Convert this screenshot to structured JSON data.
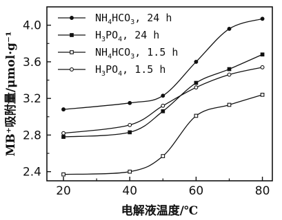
{
  "chart_data": {
    "type": "scatter",
    "xlabel": "电解液温度/℃",
    "ylabel": "MB⁺吸附量/μmol·g⁻¹",
    "xlim": [
      15,
      83
    ],
    "ylim": [
      2.3,
      4.2
    ],
    "x_ticks": [
      "20",
      "40",
      "60",
      "80"
    ],
    "y_ticks": [
      "2.4",
      "2.8",
      "3.2",
      "3.6",
      "4.0"
    ],
    "legend_position": "top-left",
    "series": [
      {
        "name_main": "NH",
        "name_sub1": "4",
        "name_mid": "HCO",
        "name_sub2": "3",
        "name_tail": ", 24 h",
        "marker": "filled-circle",
        "x": [
          20,
          40,
          50,
          60,
          70,
          80
        ],
        "y": [
          3.08,
          3.15,
          3.23,
          3.6,
          3.96,
          4.07
        ]
      },
      {
        "name_main": "H",
        "name_sub1": "3",
        "name_mid": "PO",
        "name_sub2": "4",
        "name_tail": ", 24 h",
        "marker": "filled-square",
        "x": [
          20,
          40,
          50,
          60,
          70,
          80
        ],
        "y": [
          2.78,
          2.83,
          3.06,
          3.37,
          3.52,
          3.68
        ]
      },
      {
        "name_main": "NH",
        "name_sub1": "4",
        "name_mid": "HCO",
        "name_sub2": "3",
        "name_tail": ", 1.5 h",
        "marker": "open-square",
        "x": [
          20,
          40,
          50,
          60,
          70,
          80
        ],
        "y": [
          2.37,
          2.4,
          2.57,
          3.01,
          3.13,
          3.24
        ]
      },
      {
        "name_main": "H",
        "name_sub1": "3",
        "name_mid": "PO",
        "name_sub2": "4",
        "name_tail": ", 1.5 h",
        "marker": "open-circle",
        "x": [
          20,
          40,
          50,
          60,
          70,
          80
        ],
        "y": [
          2.82,
          2.91,
          3.12,
          3.32,
          3.46,
          3.54
        ]
      }
    ]
  }
}
